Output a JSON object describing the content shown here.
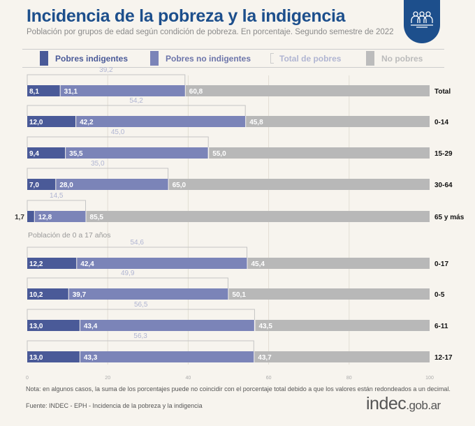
{
  "header": {
    "title": "Incidencia de la pobreza y la indigencia",
    "subtitle": "Población por grupos de edad según condición de pobreza. En porcentaje. Segundo semestre de 2022",
    "badge_icon": "people-group-icon"
  },
  "colors": {
    "indigentes": "#4a5a98",
    "no_indigentes": "#7b84b8",
    "total": "#b7bcd8",
    "no_pobres": "#b8b8b8",
    "title": "#1d4f8c"
  },
  "legend": [
    "Pobres indigentes",
    "Pobres no indigentes",
    "Total de pobres",
    "No pobres"
  ],
  "section_label": "Población de 0 a 17 años",
  "chart_data": {
    "type": "bar",
    "orientation": "horizontal-stacked",
    "xlim": [
      0,
      100
    ],
    "xticks": [
      "0",
      "20",
      "40",
      "60",
      "80",
      "100"
    ],
    "grid": true,
    "legend_position": "top",
    "categories": [
      "Total",
      "0-14",
      "15-29",
      "30-64",
      "65 y más",
      "0-17",
      "0-5",
      "6-11",
      "12-17"
    ],
    "series": [
      {
        "name": "Pobres indigentes",
        "values": [
          "8,1",
          "12,0",
          "9,4",
          "7,0",
          "1,7",
          "12,2",
          "10,2",
          "13,0",
          "13,0"
        ]
      },
      {
        "name": "Pobres no indigentes",
        "values": [
          "31,1",
          "42,2",
          "35,5",
          "28,0",
          "12,8",
          "42,4",
          "39,7",
          "43,4",
          "43,3"
        ]
      },
      {
        "name": "Total de pobres",
        "values": [
          "39,2",
          "54,2",
          "45,0",
          "35,0",
          "14,5",
          "54,6",
          "49,9",
          "56,5",
          "56,3"
        ]
      },
      {
        "name": "No pobres",
        "values": [
          "60,8",
          "45,8",
          "55,0",
          "65,0",
          "85,5",
          "45,4",
          "50,1",
          "43,5",
          "43,7"
        ]
      }
    ]
  },
  "footer": {
    "note": "Nota: en algunos casos, la suma de los porcentajes puede no coincidir con el porcentaje total debido a que los valores están redondeados a un decimal.",
    "source": "Fuente: INDEC - EPH - Incidencia de la pobreza y la indigencia",
    "logo_main": "indec",
    "logo_suffix": ".gob.ar"
  }
}
